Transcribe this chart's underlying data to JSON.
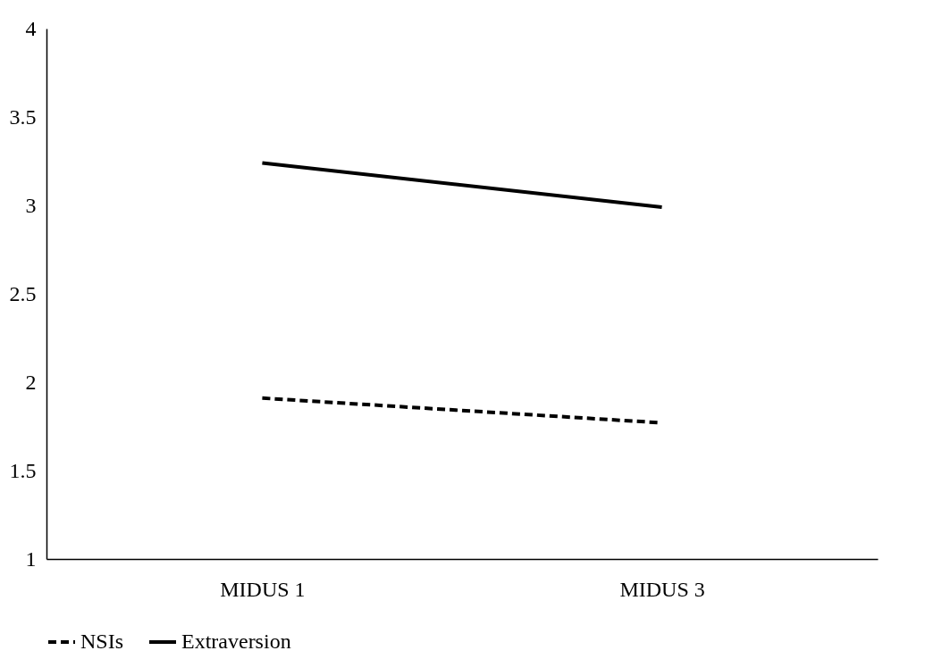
{
  "chart_data": {
    "type": "line",
    "categories": [
      "MIDUS 1",
      "MIDUS 3"
    ],
    "series": [
      {
        "name": "NSIs",
        "color": "#000000",
        "line_style": "dashed",
        "values": [
          1.91,
          1.77
        ]
      },
      {
        "name": "Extraversion",
        "color": "#000000",
        "line_style": "solid",
        "values": [
          3.24,
          2.99
        ]
      }
    ],
    "ylim": [
      1,
      4
    ],
    "yticks": [
      1,
      1.5,
      2,
      2.5,
      3,
      3.5,
      4
    ],
    "grid": false,
    "legend": "bottom",
    "marker": "none"
  }
}
